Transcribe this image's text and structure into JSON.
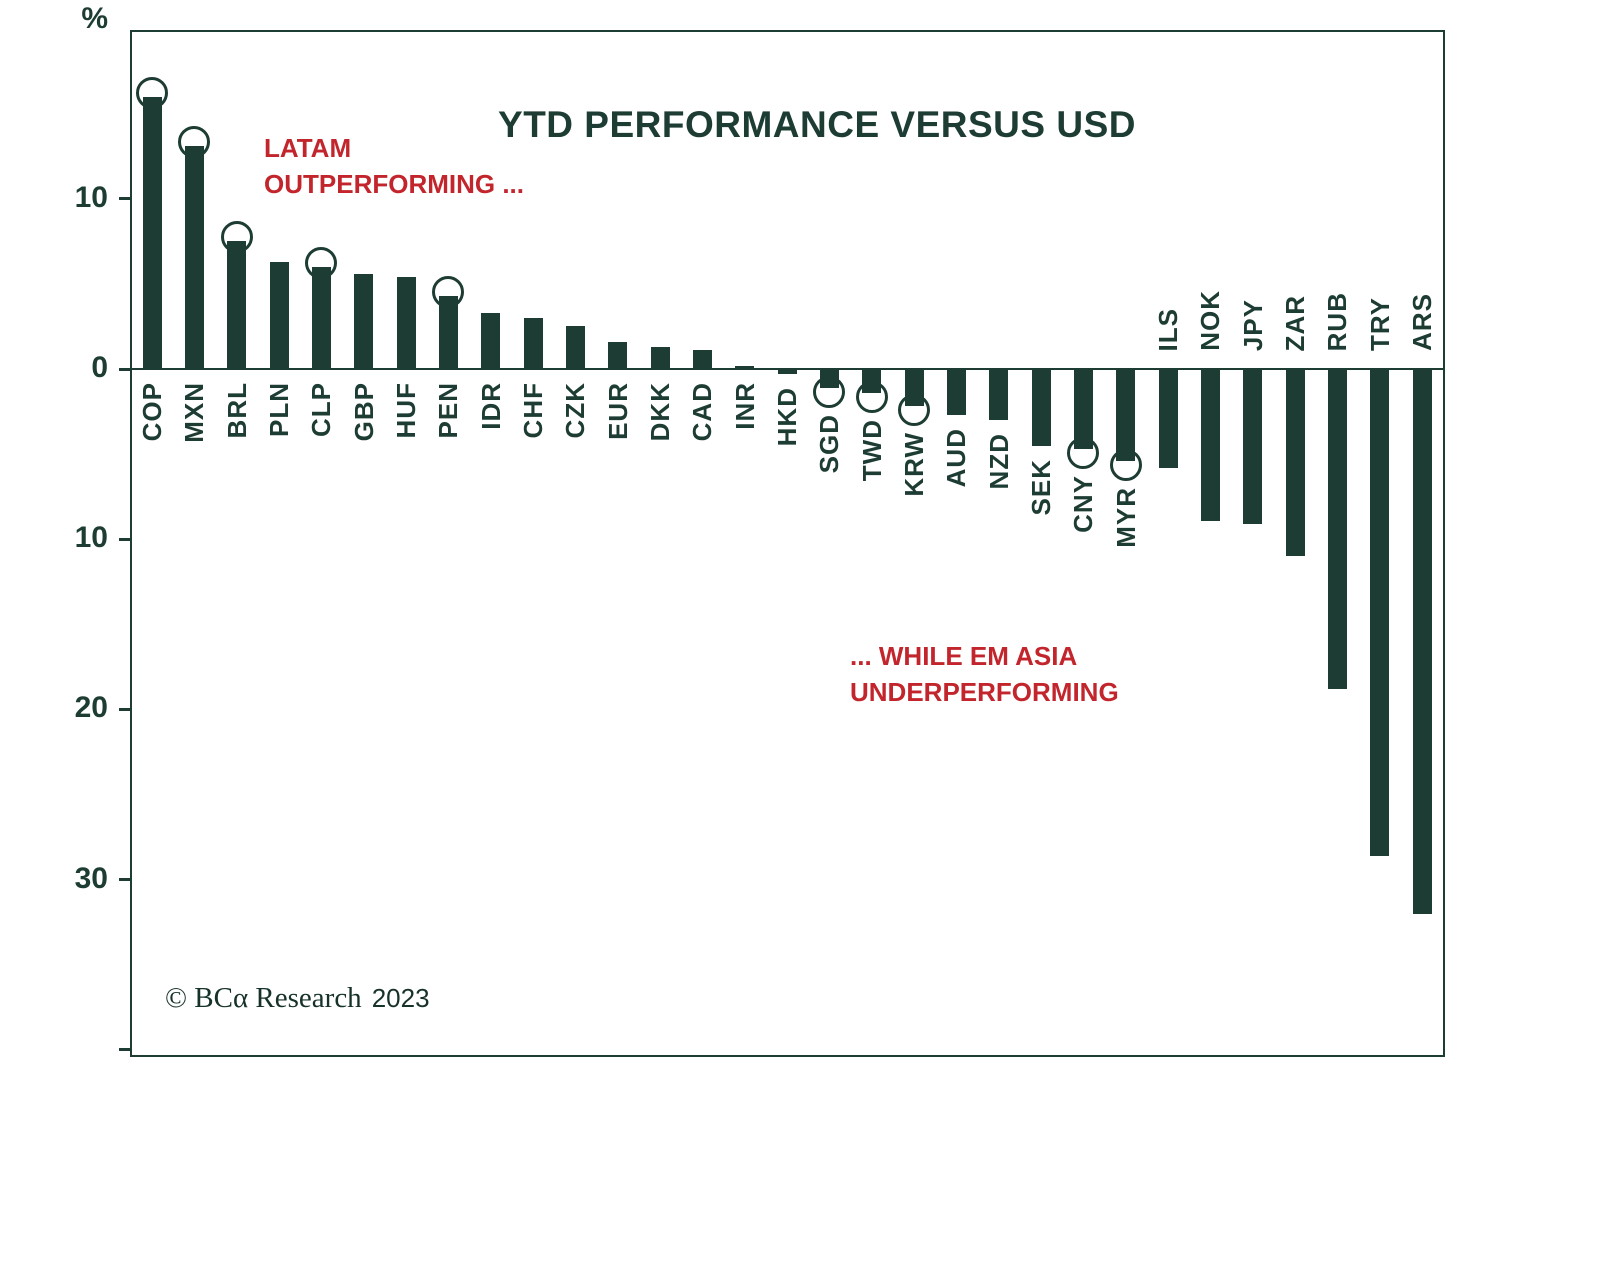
{
  "chart_data": {
    "type": "bar",
    "title": "YTD PERFORMANCE VERSUS USD",
    "y_axis": {
      "unit": "%",
      "ylim": [
        19.8,
        -40.3
      ],
      "ticks": [
        {
          "value": 10,
          "label": "10"
        },
        {
          "value": 0,
          "label": "0"
        },
        {
          "value": -10,
          "label": "10"
        },
        {
          "value": -20,
          "label": "20"
        },
        {
          "value": -30,
          "label": "30"
        },
        {
          "value": -40,
          "label": ""
        }
      ],
      "grid": false
    },
    "colors": {
      "ink": "#1d3c34",
      "annotation": "#c2262c",
      "background": "#ffffff"
    },
    "annotations": [
      {
        "lines": [
          "LATAM",
          "OUTPERFORMING ..."
        ]
      },
      {
        "lines": [
          "... WHILE EM ASIA",
          "UNDERPERFORMING"
        ]
      }
    ],
    "copyright": {
      "brand": "© BCα Research",
      "year": "2023"
    },
    "series": [
      {
        "label": "COP",
        "value": 16.0,
        "circled": true,
        "label_side": "below"
      },
      {
        "label": "MXN",
        "value": 13.1,
        "circled": true,
        "label_side": "below"
      },
      {
        "label": "BRL",
        "value": 7.5,
        "circled": true,
        "label_side": "below"
      },
      {
        "label": "PLN",
        "value": 6.3,
        "circled": false,
        "label_side": "below"
      },
      {
        "label": "CLP",
        "value": 6.0,
        "circled": true,
        "label_side": "below"
      },
      {
        "label": "GBP",
        "value": 5.6,
        "circled": false,
        "label_side": "below"
      },
      {
        "label": "HUF",
        "value": 5.4,
        "circled": false,
        "label_side": "below"
      },
      {
        "label": "PEN",
        "value": 4.3,
        "circled": true,
        "label_side": "below"
      },
      {
        "label": "IDR",
        "value": 3.3,
        "circled": false,
        "label_side": "below"
      },
      {
        "label": "CHF",
        "value": 3.0,
        "circled": false,
        "label_side": "below"
      },
      {
        "label": "CZK",
        "value": 2.5,
        "circled": false,
        "label_side": "below"
      },
      {
        "label": "EUR",
        "value": 1.6,
        "circled": false,
        "label_side": "below"
      },
      {
        "label": "DKK",
        "value": 1.3,
        "circled": false,
        "label_side": "below"
      },
      {
        "label": "CAD",
        "value": 1.1,
        "circled": false,
        "label_side": "below"
      },
      {
        "label": "INR",
        "value": 0.2,
        "circled": false,
        "label_side": "below"
      },
      {
        "label": "HKD",
        "value": -0.3,
        "circled": false,
        "label_side": "below"
      },
      {
        "label": "SGD",
        "value": -1.1,
        "circled": true,
        "label_side": "below"
      },
      {
        "label": "TWD",
        "value": -1.4,
        "circled": true,
        "label_side": "below"
      },
      {
        "label": "KRW",
        "value": -2.2,
        "circled": true,
        "label_side": "below"
      },
      {
        "label": "AUD",
        "value": -2.7,
        "circled": false,
        "label_side": "below"
      },
      {
        "label": "NZD",
        "value": -3.0,
        "circled": false,
        "label_side": "below"
      },
      {
        "label": "SEK",
        "value": -4.5,
        "circled": false,
        "label_side": "below"
      },
      {
        "label": "CNY",
        "value": -4.7,
        "circled": true,
        "label_side": "below"
      },
      {
        "label": "MYR",
        "value": -5.4,
        "circled": true,
        "label_side": "below"
      },
      {
        "label": "ILS",
        "value": -5.8,
        "circled": false,
        "label_side": "above"
      },
      {
        "label": "NOK",
        "value": -8.9,
        "circled": false,
        "label_side": "above"
      },
      {
        "label": "JPY",
        "value": -9.1,
        "circled": false,
        "label_side": "above"
      },
      {
        "label": "ZAR",
        "value": -11.0,
        "circled": false,
        "label_side": "above"
      },
      {
        "label": "RUB",
        "value": -18.8,
        "circled": false,
        "label_side": "above"
      },
      {
        "label": "TRY",
        "value": -28.6,
        "circled": false,
        "label_side": "above"
      },
      {
        "label": "ARS",
        "value": -32.0,
        "circled": false,
        "label_side": "above"
      }
    ]
  }
}
